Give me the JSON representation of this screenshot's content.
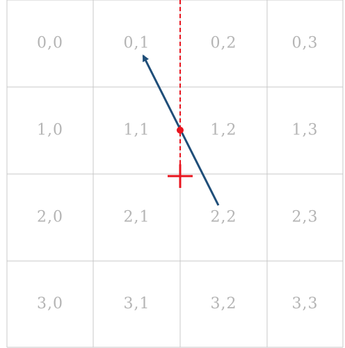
{
  "grid": {
    "rows": 4,
    "cols": 4,
    "cells": [
      [
        "0,0",
        "0,1",
        "0,2",
        "0,3"
      ],
      [
        "1,0",
        "1,1",
        "1,2",
        "1,3"
      ],
      [
        "2,0",
        "2,1",
        "2,2",
        "2,3"
      ],
      [
        "3,0",
        "3,1",
        "3,2",
        "3,3"
      ]
    ]
  },
  "colors": {
    "grid_line": "#c8c8c8",
    "cell_text": "#b4b4b4",
    "marker": "#e8141e",
    "arrow": "#1f4e79"
  },
  "annotations": {
    "arrow": {
      "from_cell": "2,2",
      "to_cell": "0,1"
    },
    "dashed_line": "vertical",
    "crosshair": "cross-marker",
    "intersection_dot": "dot-marker"
  }
}
